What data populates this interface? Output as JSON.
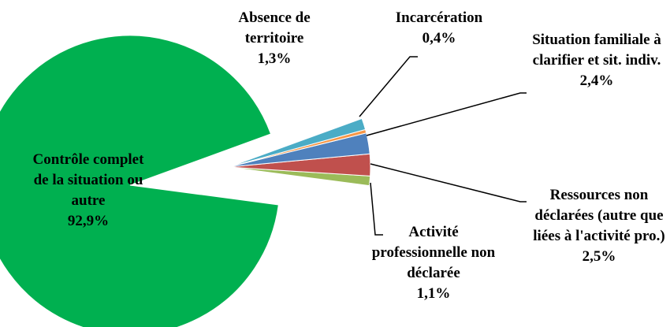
{
  "chart_data": {
    "type": "pie",
    "categories": [
      "Absence de territoire",
      "Incarcération",
      "Situation familiale à clarifier et sit. indiv.",
      "Ressources non déclarées (autre que liées à l'activité pro.)",
      "Activité professionnelle non déclarée",
      "Contrôle complet de la situation ou autre"
    ],
    "values": [
      1.3,
      0.4,
      2.4,
      2.5,
      1.1,
      92.9
    ],
    "value_labels": [
      "1,3%",
      "0,4%",
      "2,4%",
      "2,5%",
      "1,1%",
      "92,9%"
    ],
    "colors": [
      "#4bacc6",
      "#f79646",
      "#4f81bd",
      "#c0504d",
      "#9bbb59",
      "#00b050"
    ]
  }
}
